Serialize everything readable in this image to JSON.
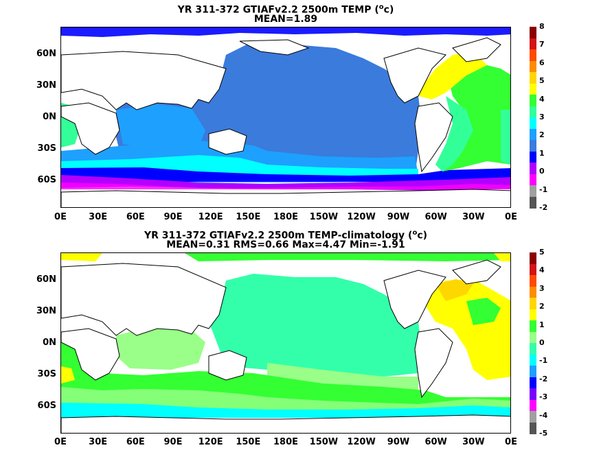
{
  "panels": [
    {
      "title_main": "YR 311-372 GTIAFv2.2 2500m TEMP (",
      "title_unit_sup": "o",
      "title_unit_tail": "c)",
      "subtitle": "MEAN=1.89",
      "lat_labels": [
        "60N",
        "30N",
        "0N",
        "30S",
        "60S"
      ],
      "lon_labels": [
        "0E",
        "30E",
        "60E",
        "90E",
        "120E",
        "150E",
        "180E",
        "150W",
        "120W",
        "90W",
        "60W",
        "30W",
        "0E"
      ],
      "colorbar_labels": [
        "8",
        "7",
        "6",
        "5",
        "4",
        "3",
        "2",
        "1",
        "0",
        "-1",
        "-2"
      ],
      "colorbar_colors": [
        "#8b0000",
        "#d41414",
        "#ff4a00",
        "#ff8c00",
        "#ffd700",
        "#ffff00",
        "#33ff33",
        "#33ff99",
        "#00ffff",
        "#1ea0ff",
        "#3a7bdc",
        "#0000ff",
        "#b200ff",
        "#ff00ff",
        "#a0a0a0",
        "#555555"
      ]
    },
    {
      "title_main": "YR 311-372 GTIAFv2.2 2500m TEMP-climatology (",
      "title_unit_sup": "o",
      "title_unit_tail": "c)",
      "subtitle": "MEAN=0.31   RMS=0.66   Max=4.47   Min=-1.91",
      "lat_labels": [
        "60N",
        "30N",
        "0N",
        "30S",
        "60S"
      ],
      "lon_labels": [
        "0E",
        "30E",
        "60E",
        "90E",
        "120E",
        "150E",
        "180E",
        "150W",
        "120W",
        "90W",
        "60W",
        "30W",
        "0E"
      ],
      "colorbar_labels": [
        "5",
        "4",
        "3",
        "2",
        "1",
        "0",
        "-1",
        "-2",
        "-3",
        "-4",
        "-5"
      ],
      "colorbar_colors": [
        "#8b0000",
        "#d41414",
        "#ff4a00",
        "#ff8c00",
        "#ffd700",
        "#ffff00",
        "#33ff33",
        "#99ff88",
        "#33ffaa",
        "#00ffff",
        "#1ea0ff",
        "#0000ff",
        "#7a00ff",
        "#ff00ff",
        "#a0a0a0",
        "#555555"
      ]
    }
  ]
}
